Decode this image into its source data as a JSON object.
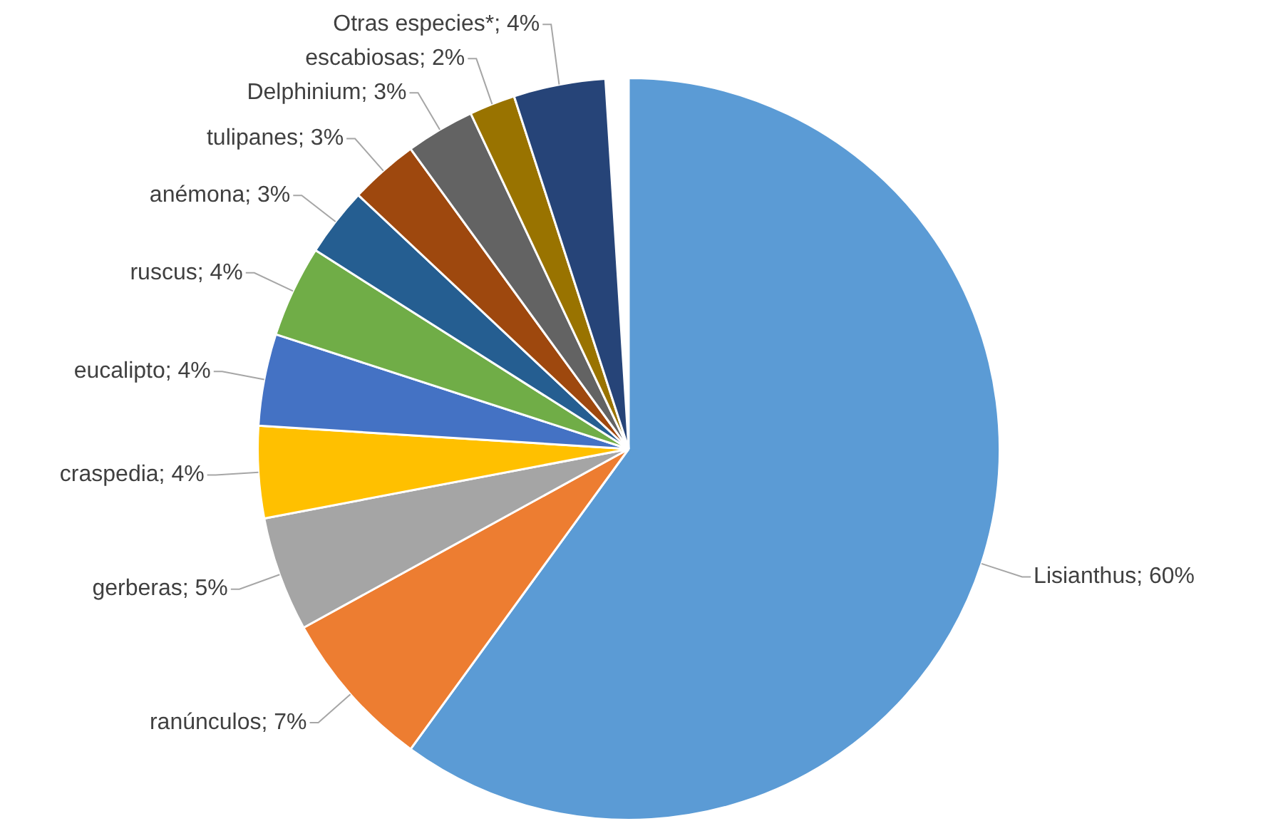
{
  "chart_data": {
    "type": "pie",
    "categories": [
      "Lisianthus; 60%",
      "ranúnculos; 7%",
      "gerberas; 5%",
      "craspedia; 4%",
      "eucalipto; 4%",
      "ruscus; 4%",
      "anémona; 3%",
      "tulipanes; 3%",
      "Delphinium; 3%",
      "escabiosas; 2%",
      "Otras especies*; 4%"
    ],
    "values": [
      60,
      7,
      5,
      4,
      4,
      4,
      3,
      3,
      3,
      2,
      4
    ],
    "colors": [
      "#5b9bd5",
      "#ed7d31",
      "#a5a5a5",
      "#ffc000",
      "#4472c4",
      "#70ad47",
      "#255e91",
      "#9e480e",
      "#636363",
      "#997300",
      "#264478"
    ]
  }
}
